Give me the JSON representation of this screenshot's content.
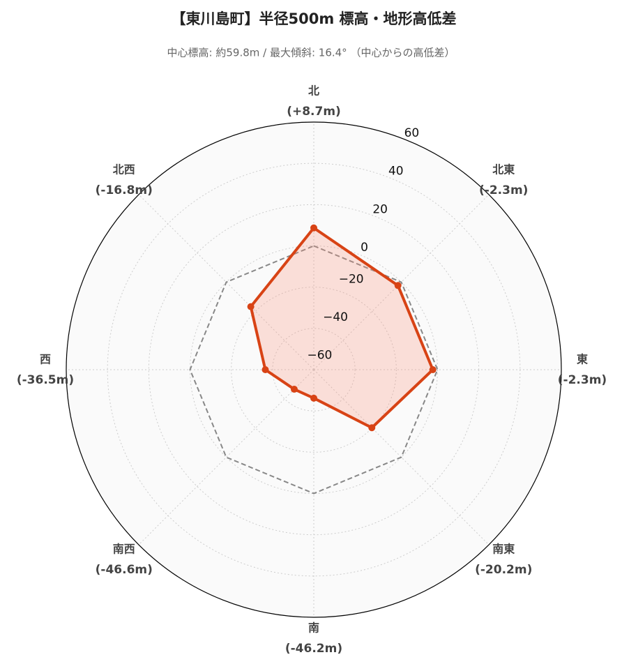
{
  "chart_data": {
    "type": "radar",
    "title": "【東川島町】半径500m 標高・地形高低差",
    "subtitle": "中心標高: 約59.8m / 最大傾斜: 16.4° （中心からの高低差）",
    "categories": [
      "北",
      "北東",
      "東",
      "南東",
      "南",
      "南西",
      "西",
      "北西"
    ],
    "values": [
      8.7,
      -2.3,
      -2.3,
      -20.2,
      -46.2,
      -46.6,
      -36.5,
      -16.8
    ],
    "value_labels": [
      "(+8.7m)",
      "(-2.3m)",
      "(-2.3m)",
      "(-20.2m)",
      "(-46.2m)",
      "(-46.6m)",
      "(-36.5m)",
      "(-16.8m)"
    ],
    "color": "#d84315",
    "reference_line": 0,
    "ylim": [
      -60,
      60
    ],
    "yticks": [
      {
        "value": -60,
        "label": "−60"
      },
      {
        "value": -40,
        "label": "−40"
      },
      {
        "value": -20,
        "label": "−20"
      },
      0,
      20,
      40,
      60
    ],
    "grid": true
  }
}
